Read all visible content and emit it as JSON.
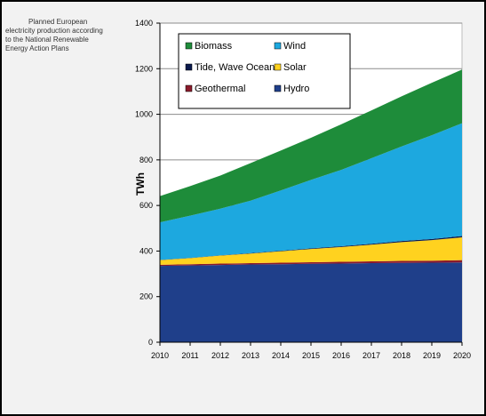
{
  "caption": {
    "lines": [
      "Planned European",
      "electricity production according",
      "to the National Renewable",
      "Energy Action Plans"
    ]
  },
  "chart_data": {
    "type": "area",
    "stacked": true,
    "x": [
      2010,
      2011,
      2012,
      2013,
      2014,
      2015,
      2016,
      2017,
      2018,
      2019,
      2020
    ],
    "ylabel": "TWh",
    "xlabel": "",
    "ylim": [
      0,
      1400
    ],
    "yticks": [
      0,
      200,
      400,
      600,
      800,
      1000,
      1200,
      1400
    ],
    "grid": true,
    "legend_position": "top-left",
    "series": [
      {
        "name": "Hydro",
        "color": "#1f3f8a",
        "values": [
          335,
          337,
          339,
          341,
          342,
          344,
          345,
          347,
          348,
          349,
          350
        ]
      },
      {
        "name": "Geothermal",
        "color": "#8b1a2b",
        "values": [
          5,
          5,
          6,
          6,
          7,
          7,
          8,
          8,
          9,
          9,
          10
        ]
      },
      {
        "name": "Solar",
        "color": "#ffd21f",
        "values": [
          20,
          27,
          35,
          42,
          50,
          58,
          65,
          73,
          82,
          90,
          100
        ]
      },
      {
        "name": "Tide, Wave Ocean",
        "color": "#0b1a4d",
        "values": [
          1,
          1,
          1,
          2,
          2,
          3,
          3,
          4,
          5,
          5,
          6
        ]
      },
      {
        "name": "Wind",
        "color": "#1da8df",
        "values": [
          165,
          185,
          205,
          230,
          265,
          300,
          335,
          375,
          415,
          455,
          495
        ]
      },
      {
        "name": "Biomass",
        "color": "#1e8c3a",
        "values": [
          115,
          130,
          145,
          165,
          175,
          185,
          200,
          210,
          220,
          230,
          235
        ]
      }
    ],
    "legend_order": [
      "Biomass",
      "Wind",
      "Tide, Wave Ocean",
      "Solar",
      "Geothermal",
      "Hydro"
    ]
  }
}
